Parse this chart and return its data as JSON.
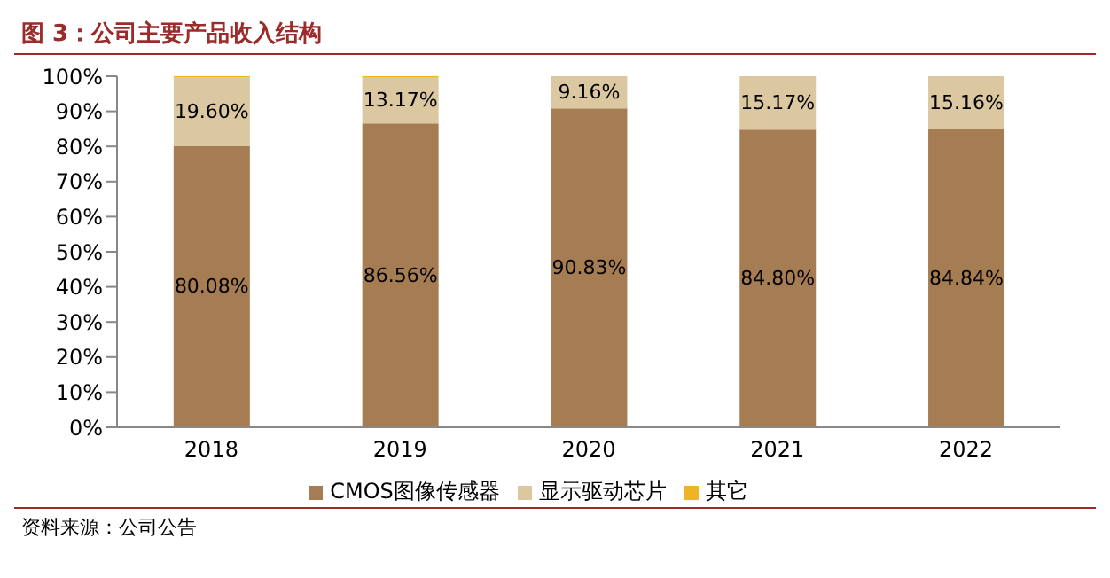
{
  "chart_data": {
    "type": "bar",
    "title": "图 3：公司主要产品收入结构",
    "stacked": true,
    "categories": [
      "2018",
      "2019",
      "2020",
      "2021",
      "2022"
    ],
    "series": [
      {
        "name": "CMOS图像传感器",
        "color": "#a67c52",
        "values": [
          80.08,
          86.56,
          90.83,
          84.8,
          84.84
        ],
        "value_labels": [
          "80.08%",
          "86.56%",
          "90.83%",
          "84.80%",
          "84.84%"
        ]
      },
      {
        "name": "显示驱动芯片",
        "color": "#dcc8a0",
        "values": [
          19.6,
          13.17,
          9.16,
          15.17,
          15.16
        ],
        "value_labels": [
          "19.60%",
          "13.17%",
          "9.16%",
          "15.17%",
          "15.16%"
        ]
      },
      {
        "name": "其它",
        "color": "#f0b323",
        "values": [
          0.3,
          0.3,
          null,
          null,
          0
        ]
      }
    ],
    "ylim": [
      0,
      100
    ],
    "yticks": [
      {
        "value": 0,
        "label": "0%"
      },
      {
        "value": 10,
        "label": "10%"
      },
      {
        "value": 20,
        "label": "20%"
      },
      {
        "value": 30,
        "label": "30%"
      },
      {
        "value": 40,
        "label": "40%"
      },
      {
        "value": 50,
        "label": "50%"
      },
      {
        "value": 60,
        "label": "60%"
      },
      {
        "value": 70,
        "label": "70%"
      },
      {
        "value": 80,
        "label": "80%"
      },
      {
        "value": 90,
        "label": "90%"
      },
      {
        "value": 100,
        "label": "100%"
      }
    ],
    "grid": false,
    "legend": "bottom",
    "annotations": [
      "资料来源：公司公告"
    ]
  }
}
